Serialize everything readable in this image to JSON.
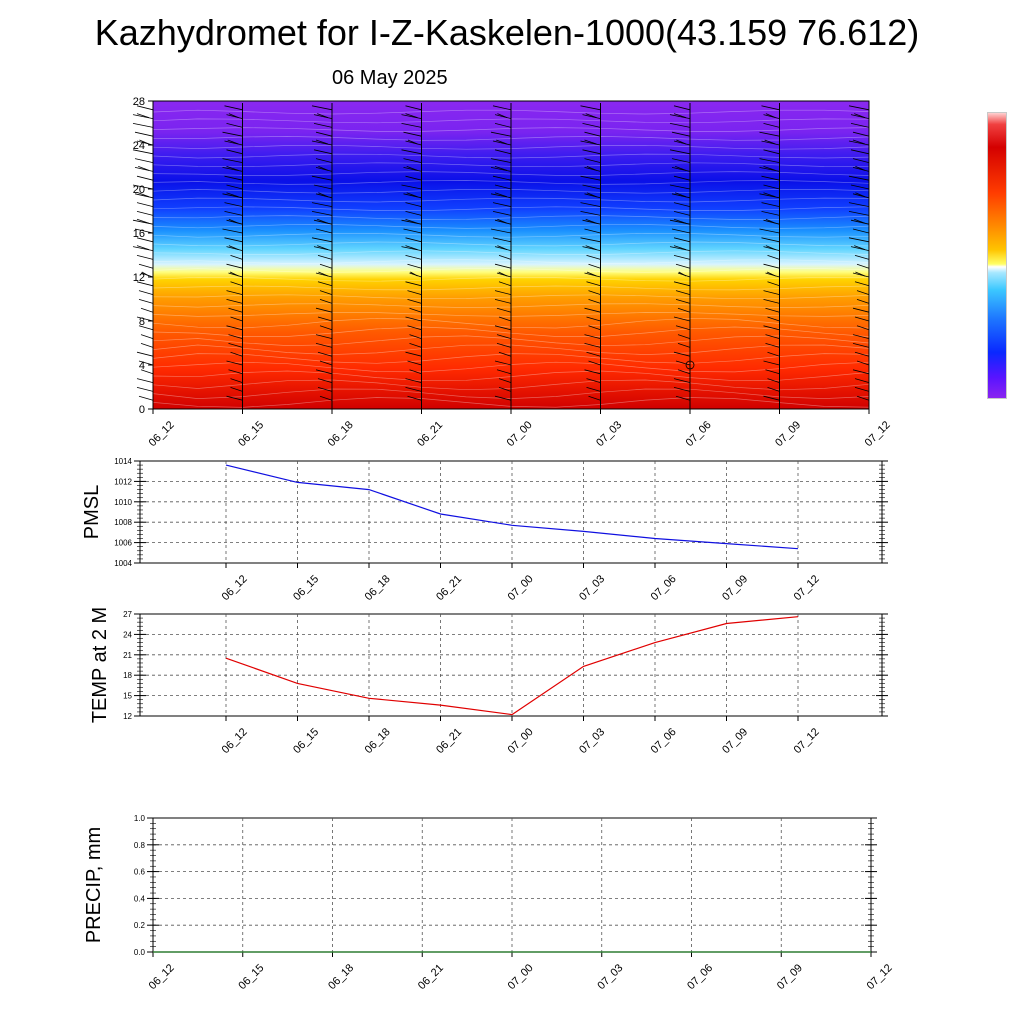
{
  "title": "Kazhydromet for I-Z-Kaskelen-1000(43.159 76.612)",
  "subtitle": "06 May 2025",
  "colors": {
    "pmsl_line": "#1010e0",
    "temp_line": "#e00000",
    "precip_line": "#2e7d32",
    "grid": "#555555",
    "barb": "#000000"
  },
  "chart_data": [
    {
      "type": "heatmap",
      "title": "",
      "xlabel": "",
      "ylabel": "",
      "x": [
        "06_12",
        "06_15",
        "06_18",
        "06_21",
        "07_00",
        "07_03",
        "07_06",
        "07_09",
        "07_12"
      ],
      "yticks": [
        0,
        4,
        8,
        12,
        16,
        20,
        24,
        28
      ],
      "ylim": [
        0,
        28
      ],
      "colormap": [
        "#d40000",
        "#ff3c00",
        "#ff8c00",
        "#ffc400",
        "#ffff66",
        "#3cc8ff",
        "#1e78ff",
        "#0a28ff",
        "#8a24f0"
      ],
      "marker": {
        "x": "07_06",
        "y": 4
      },
      "wind_barbs": true
    },
    {
      "type": "line",
      "title": "",
      "ylabel": "PMSL",
      "x": [
        "06_12",
        "06_15",
        "06_18",
        "06_21",
        "07_00",
        "07_03",
        "07_06",
        "07_09",
        "07_12"
      ],
      "series": [
        {
          "values": [
            1013.6,
            1011.9,
            1011.2,
            1008.8,
            1007.7,
            1007.1,
            1006.4,
            1005.9,
            1005.4
          ]
        }
      ],
      "yticks": [
        1004,
        1006,
        1008,
        1010,
        1012,
        1014
      ],
      "ylim": [
        1004,
        1014
      ],
      "grid": true
    },
    {
      "type": "line",
      "title": "",
      "ylabel": "TEMP at 2 M",
      "x": [
        "06_12",
        "06_15",
        "06_18",
        "06_21",
        "07_00",
        "07_03",
        "07_06",
        "07_09",
        "07_12"
      ],
      "series": [
        {
          "values": [
            20.5,
            16.8,
            14.6,
            13.6,
            12.2,
            19.3,
            22.8,
            25.6,
            26.6
          ]
        }
      ],
      "yticks": [
        12,
        15,
        18,
        21,
        24,
        27
      ],
      "ylim": [
        12,
        27
      ],
      "grid": true
    },
    {
      "type": "line",
      "title": "",
      "ylabel": "PRECIP, mm",
      "x": [
        "06_12",
        "06_15",
        "06_18",
        "06_21",
        "07_00",
        "07_03",
        "07_06",
        "07_09",
        "07_12"
      ],
      "series": [
        {
          "values": [
            0,
            0,
            0,
            0,
            0,
            0,
            0,
            0,
            0
          ]
        }
      ],
      "yticks": [
        "0.0",
        "0.2",
        "0.4",
        "0.6",
        "0.8",
        "1.0"
      ],
      "ylim": [
        0,
        1
      ],
      "grid": true
    }
  ]
}
